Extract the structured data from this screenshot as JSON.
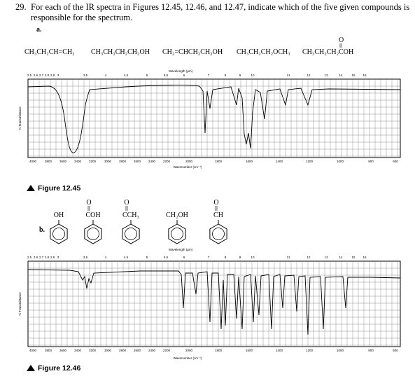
{
  "question": {
    "number": "29.",
    "line1": "For each of the IR spectra in Figures 12.45, 12.46, and 12.47, indicate which of the five given compounds is",
    "line2": "responsible for the spectrum."
  },
  "part_a": {
    "label": "a.",
    "compounds": [
      {
        "formula": "CH₃CH₂CH=CH₂"
      },
      {
        "formula": "CH₃CH₂CH₂CH₂OH"
      },
      {
        "formula": "CH₂=CHCH₂CH₂OH"
      },
      {
        "formula": "CH₃CH₂CH₂OCH₃"
      },
      {
        "formula": "CH₃CH₂CH₂COH",
        "carbonyl": "O"
      }
    ]
  },
  "figure_a": {
    "wavelength_label": "Wavelength (μm)",
    "wavelength_ticks": [
      "2.5",
      "2.6",
      "2.7",
      "2.8",
      "2.9",
      "3",
      "3.5",
      "4",
      "4.5",
      "5",
      "5.5",
      "6",
      "7",
      "8",
      "9",
      "10",
      "11",
      "12",
      "13",
      "14",
      "15",
      "16"
    ],
    "wavenumber_label": "Wavenumber (cm⁻¹)",
    "wavenumber_ticks": [
      "4000",
      "3800",
      "3600",
      "3400",
      "3200",
      "3000",
      "2800",
      "2600",
      "2400",
      "2200",
      "2000",
      "1800",
      "1600",
      "1400",
      "1200",
      "1000",
      "800",
      "600"
    ],
    "y_label": "% Transmittance",
    "caption": "Figure 12.45"
  },
  "part_b": {
    "label": "b.",
    "compounds": [
      {
        "substituent": "OH"
      },
      {
        "substituent": "COH",
        "carbonyl": "O"
      },
      {
        "substituent": "CCH₃",
        "carbonyl": "O"
      },
      {
        "substituent": "CH₂OH"
      },
      {
        "substituent": "CH",
        "carbonyl": "O"
      }
    ]
  },
  "figure_b": {
    "wavelength_label": "Wavelength (μm)",
    "wavelength_ticks": [
      "2.5",
      "2.6",
      "2.7",
      "2.8",
      "2.9",
      "3",
      "3.5",
      "4",
      "4.5",
      "5",
      "5.5",
      "6",
      "7",
      "8",
      "9",
      "10",
      "11",
      "12",
      "13",
      "14",
      "15",
      "16"
    ],
    "wavenumber_label": "Wavenumber (cm⁻¹)",
    "wavenumber_ticks": [
      "4000",
      "3800",
      "3600",
      "3400",
      "3200",
      "3000",
      "2800",
      "2600",
      "2400",
      "2200",
      "2000",
      "1800",
      "1600",
      "1400",
      "1200",
      "1000",
      "800",
      "600"
    ],
    "y_label": "% Transmittance",
    "caption": "Figure 12.46"
  }
}
